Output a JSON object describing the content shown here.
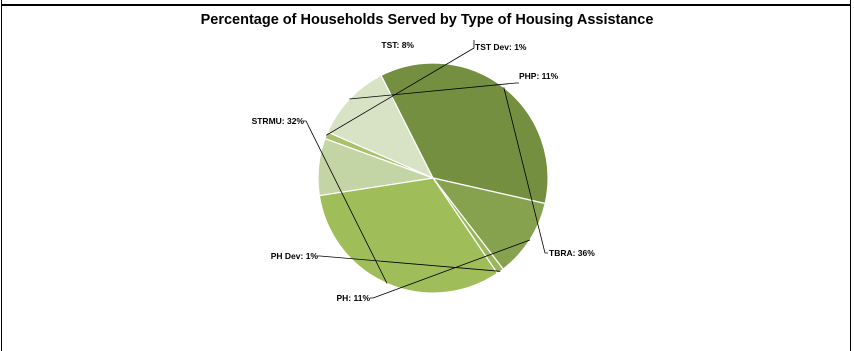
{
  "chart_data": {
    "type": "pie",
    "title": "Percentage of Households Served by Type of Housing Assistance",
    "slices": [
      {
        "label": "TST Dev",
        "value": 1,
        "text": "TST Dev:  1%",
        "color": "#a9c06c"
      },
      {
        "label": "PHP",
        "value": 11,
        "text": "PHP:  11%",
        "color": "#d8e3c6"
      },
      {
        "label": "TBRA",
        "value": 36,
        "text": "TBRA:  36%",
        "color": "#738f3f"
      },
      {
        "label": "PH",
        "value": 11,
        "text": "PH:  11%",
        "color": "#87a24e"
      },
      {
        "label": "PH Dev",
        "value": 1,
        "text": "PH Dev:  1%",
        "color": "#9bb65c"
      },
      {
        "label": "STRMU",
        "value": 32,
        "text": "STRMU:  32%",
        "color": "#9fbd58"
      },
      {
        "label": "TST",
        "value": 8,
        "text": "TST:  8%",
        "color": "#c3d4a5"
      }
    ],
    "legend": "none"
  }
}
